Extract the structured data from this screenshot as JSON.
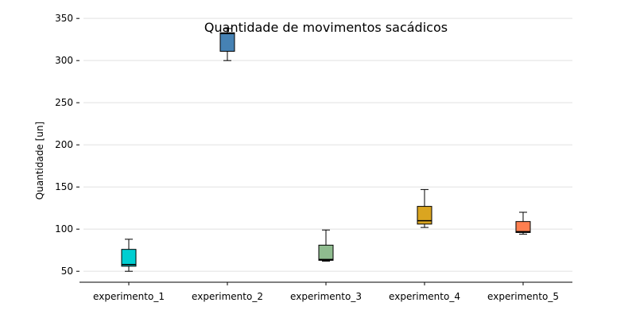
{
  "chart_data": {
    "type": "box",
    "title": "Quantidade de movimentos sacádicos",
    "xlabel": "",
    "ylabel": "Quantidade [un]",
    "ylim": [
      37,
      353
    ],
    "yticks": [
      50,
      100,
      150,
      200,
      250,
      300,
      350
    ],
    "grid": "y",
    "categories": [
      "experimento_1",
      "experimento_2",
      "experimento_3",
      "experimento_4",
      "experimento_5"
    ],
    "boxes": [
      {
        "name": "experimento_1",
        "min": 50,
        "q1": 56,
        "median": 58,
        "q3": 76,
        "max": 88,
        "color": "#00ced1"
      },
      {
        "name": "experimento_2",
        "min": 300,
        "q1": 311,
        "median": 332,
        "q3": 333,
        "max": 338,
        "color": "#4682b4"
      },
      {
        "name": "experimento_3",
        "min": 62,
        "q1": 63,
        "median": 64,
        "q3": 81,
        "max": 99,
        "color": "#8fbc8f"
      },
      {
        "name": "experimento_4",
        "min": 102,
        "q1": 106,
        "median": 110,
        "q3": 127,
        "max": 147,
        "color": "#daa520"
      },
      {
        "name": "experimento_5",
        "min": 94,
        "q1": 96,
        "median": 97,
        "q3": 109,
        "max": 120,
        "color": "#ff7f50"
      }
    ]
  }
}
